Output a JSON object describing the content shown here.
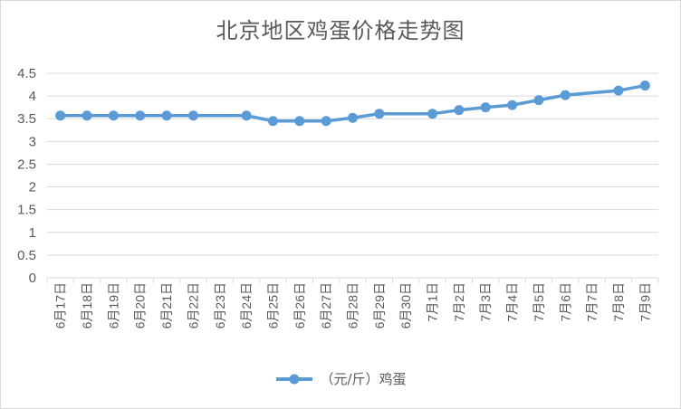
{
  "colors": {
    "series": "#5b9bd5",
    "grid": "#d9d9d9",
    "text": "#595959"
  },
  "chart_data": {
    "type": "line",
    "title": "北京地区鸡蛋价格走势图",
    "xlabel": "",
    "ylabel": "",
    "ylim": [
      0,
      4.5
    ],
    "yticks": [
      "0",
      "0.5",
      "1",
      "1.5",
      "2",
      "2.5",
      "3",
      "3.5",
      "4",
      "4.5"
    ],
    "grid": true,
    "legend": "bottom",
    "categories": [
      "6月17日",
      "6月18日",
      "6月19日",
      "6月20日",
      "6月21日",
      "6月22日",
      "6月23日",
      "6月24日",
      "6月25日",
      "6月26日",
      "6月27日",
      "6月28日",
      "6月29日",
      "6月30日",
      "7月1日",
      "7月2日",
      "7月3日",
      "7月4日",
      "7月5日",
      "7月6日",
      "7月7日",
      "7月8日",
      "7月9日"
    ],
    "series": [
      {
        "name": "（元/斤）鸡蛋",
        "values": [
          3.57,
          3.57,
          3.57,
          3.57,
          3.57,
          3.57,
          null,
          3.57,
          3.45,
          3.45,
          3.45,
          3.52,
          3.61,
          null,
          3.61,
          3.69,
          3.75,
          3.8,
          3.91,
          4.02,
          null,
          4.12,
          4.23
        ]
      }
    ]
  }
}
